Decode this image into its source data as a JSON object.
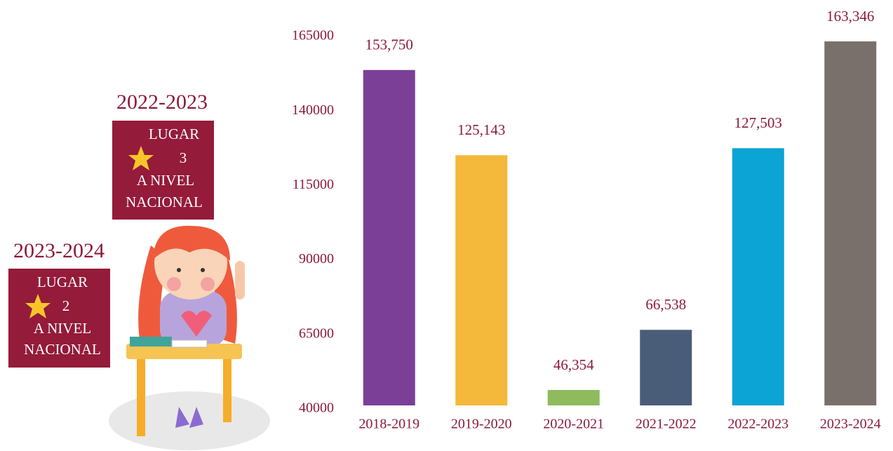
{
  "chart_data": {
    "type": "bar",
    "categories": [
      "2018-2019",
      "2019-2020",
      "2020-2021",
      "2021-2022",
      "2022-2023",
      "2023-2024"
    ],
    "values": [
      153750,
      125143,
      46354,
      66538,
      127503,
      163346
    ],
    "value_labels": [
      "153,750",
      "125,143",
      "46,354",
      "66,538",
      "127,503",
      "163,346"
    ],
    "colors": [
      "#7b3f98",
      "#f4b83a",
      "#8fba5e",
      "#4a5d78",
      "#0ca4d4",
      "#7a706b"
    ],
    "ylim": [
      40000,
      165000
    ],
    "yticks": [
      40000,
      65000,
      90000,
      115000,
      140000,
      165000
    ],
    "grid": false
  },
  "badges": [
    {
      "title": "2022-2023",
      "lines": [
        "LUGAR",
        "3",
        "A NIVEL",
        "NACIONAL"
      ]
    },
    {
      "title": "2023-2024",
      "lines": [
        "LUGAR",
        "2",
        "A NIVEL",
        "NACIONAL"
      ]
    }
  ]
}
